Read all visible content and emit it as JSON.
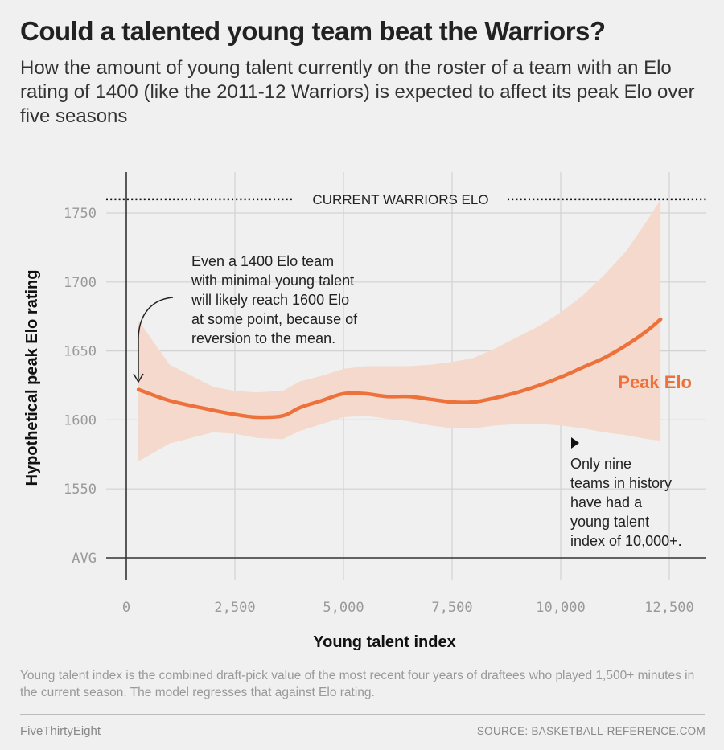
{
  "header": {
    "title": "Could a talented young team beat the Warriors?",
    "subtitle": "How the amount of young talent currently on the roster of a team with an Elo rating of 1400 (like the 2011-12 Warriors) is expected to affect its peak Elo over five seasons"
  },
  "footer": {
    "note": "Young talent index is the combined draft-pick value of the most recent four years of draftees who played 1,500+ minutes in the current season. The model regresses that against Elo rating.",
    "brand": "FiveThirtyEight",
    "source": "SOURCE: BASKETBALL-REFERENCE.COM"
  },
  "colors": {
    "line": "#ed713a",
    "band": "#f5d9cc",
    "grid": "#d2d2d2",
    "axis": "#333333"
  },
  "chart_data": {
    "type": "line",
    "title": "Could a talented young team beat the Warriors?",
    "xlabel": "Young talent index",
    "ylabel": "Hypothetical peak Elo rating",
    "xlim": [
      0,
      13000
    ],
    "ylim": [
      1500,
      1790
    ],
    "grid": true,
    "x_ticks": [
      0,
      2500,
      5000,
      7500,
      10000,
      12500
    ],
    "x_tick_labels": [
      "0",
      "2,500",
      "5,000",
      "7,500",
      "10,000",
      "12,500"
    ],
    "y_ticks": [
      1500,
      1550,
      1600,
      1650,
      1700,
      1750
    ],
    "y_tick_labels": [
      "AVG",
      "1550",
      "1600",
      "1650",
      "1700",
      "1750"
    ],
    "reference_line": {
      "y": 1760,
      "label": "CURRENT WARRIORS ELO"
    },
    "series": [
      {
        "name": "Peak Elo",
        "x": [
          280,
          1000,
          2000,
          2500,
          3000,
          3600,
          4000,
          4500,
          5000,
          5500,
          6000,
          6500,
          7000,
          7500,
          8000,
          8500,
          9000,
          9500,
          10000,
          10500,
          11000,
          11500,
          12000,
          12300
        ],
        "y": [
          1622,
          1614,
          1607,
          1604,
          1602,
          1603,
          1609,
          1614,
          1619,
          1619,
          1617,
          1617,
          1615,
          1613,
          1613,
          1616,
          1620,
          1625,
          1631,
          1638,
          1645,
          1654,
          1665,
          1673
        ],
        "upper": [
          1672,
          1640,
          1624,
          1621,
          1620,
          1621,
          1628,
          1632,
          1637,
          1639,
          1639,
          1639,
          1640,
          1642,
          1645,
          1652,
          1660,
          1668,
          1678,
          1690,
          1705,
          1722,
          1745,
          1760
        ],
        "lower": [
          1570,
          1583,
          1591,
          1590,
          1587,
          1586,
          1592,
          1597,
          1602,
          1603,
          1601,
          1599,
          1596,
          1594,
          1594,
          1596,
          1597,
          1597,
          1596,
          1594,
          1591,
          1589,
          1586,
          1585
        ]
      }
    ],
    "annotations": [
      {
        "lines": [
          "Even a 1400 Elo team",
          "with minimal young talent",
          "will likely reach 1600 Elo",
          "at some point, because of",
          "reversion to the mean."
        ]
      },
      {
        "lines": [
          "Only nine",
          "teams in history",
          "have had a",
          "young talent",
          "index of 10,000+."
        ]
      }
    ]
  }
}
